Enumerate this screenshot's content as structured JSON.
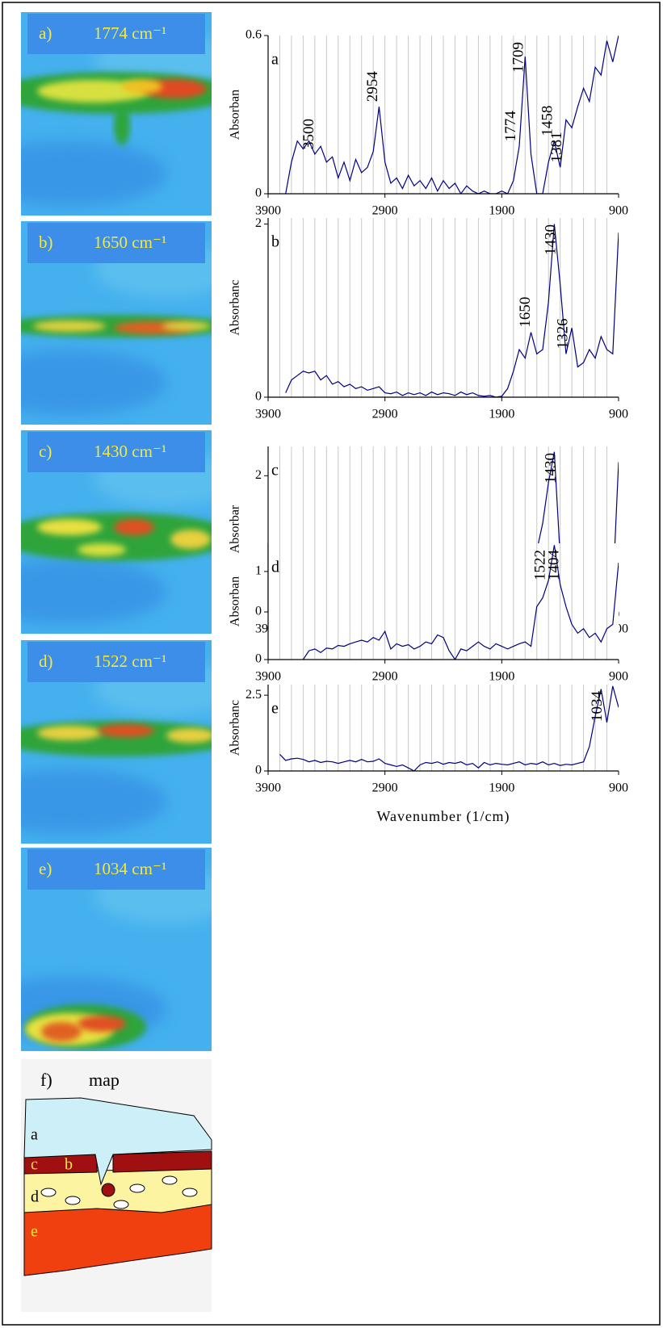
{
  "images": [
    {
      "label": "a)",
      "band": "1774 cm⁻¹"
    },
    {
      "label": "b)",
      "band": "1650 cm⁻¹"
    },
    {
      "label": "c)",
      "band": "1430 cm⁻¹"
    },
    {
      "label": "d)",
      "band": "1522 cm⁻¹"
    },
    {
      "label": "e)",
      "band": "1034 cm⁻¹"
    }
  ],
  "map": {
    "label": "f)",
    "title": "map",
    "regions": [
      "a",
      "b",
      "c",
      "d",
      "e"
    ]
  },
  "chart_data": [
    {
      "type": "line",
      "panel": "a",
      "y_label": "Absorban",
      "x": [
        3800,
        3750,
        3700,
        3650,
        3600,
        3550,
        3500,
        3450,
        3400,
        3350,
        3300,
        3250,
        3200,
        3150,
        3100,
        3050,
        3000,
        2950,
        2900,
        2850,
        2800,
        2750,
        2700,
        2650,
        2600,
        2550,
        2500,
        2450,
        2400,
        2350,
        2300,
        2250,
        2200,
        2150,
        2100,
        2050,
        2000,
        1950,
        1900,
        1850,
        1800,
        1750,
        1700,
        1650,
        1600,
        1550,
        1500,
        1450,
        1400,
        1350,
        1300,
        1250,
        1200,
        1150,
        1100,
        1050,
        1000,
        950,
        900
      ],
      "xlim": [
        3900,
        900
      ],
      "xticks": [
        3900,
        2900,
        1900,
        900
      ],
      "xgrid": [
        3800,
        3700,
        3600,
        3500,
        3400,
        3300,
        3200,
        3100,
        3000,
        2900,
        2800,
        2700,
        2600,
        2500,
        2400,
        2300,
        2200,
        2100,
        2000,
        1900,
        1800,
        1700,
        1600,
        1500,
        1400,
        1300,
        1200,
        1100,
        1000
      ],
      "ylim": [
        0,
        0.6
      ],
      "yticks": [
        0,
        0.6
      ],
      "peak_labels": [
        3500,
        2954,
        1774,
        1709,
        1458,
        1381
      ],
      "series": [
        {
          "color": "#000080",
          "values": [
            null,
            0,
            0.12,
            0.2,
            0.17,
            0.2,
            0.15,
            0.18,
            0.12,
            0.14,
            0.06,
            0.12,
            0.05,
            0.13,
            0.08,
            0.1,
            0.16,
            0.33,
            0.12,
            0.04,
            0.06,
            0.02,
            0.07,
            0.03,
            0.05,
            0.02,
            0.06,
            0.01,
            0.05,
            0.02,
            0.04,
            0,
            0.03,
            0.01,
            0,
            0.01,
            0,
            0,
            0.01,
            0,
            0.05,
            0.18,
            0.52,
            0.15,
            0,
            0,
            0.12,
            0.2,
            0.1,
            0.28,
            0.25,
            0.33,
            0.4,
            0.35,
            0.48,
            0.45,
            0.58,
            0.5,
            0.6
          ]
        }
      ]
    },
    {
      "type": "line",
      "panel": "b",
      "y_label": "Absorbanc",
      "x": [
        3800,
        3750,
        3700,
        3650,
        3600,
        3550,
        3500,
        3450,
        3400,
        3350,
        3300,
        3250,
        3200,
        3150,
        3100,
        3050,
        3000,
        2950,
        2900,
        2850,
        2800,
        2750,
        2700,
        2650,
        2600,
        2550,
        2500,
        2450,
        2400,
        2350,
        2300,
        2250,
        2200,
        2150,
        2100,
        2050,
        2000,
        1950,
        1900,
        1850,
        1800,
        1750,
        1700,
        1650,
        1600,
        1550,
        1500,
        1450,
        1400,
        1350,
        1300,
        1250,
        1200,
        1150,
        1100,
        1050,
        1000,
        950,
        900
      ],
      "xlim": [
        3900,
        900
      ],
      "xticks": [
        3900,
        2900,
        1900,
        900
      ],
      "xgrid": [
        3800,
        3700,
        3600,
        3500,
        3400,
        3300,
        3200,
        3100,
        3000,
        2900,
        2800,
        2700,
        2600,
        2500,
        2400,
        2300,
        2200,
        2100,
        2000,
        1900,
        1800,
        1700,
        1600,
        1500,
        1400,
        1300,
        1200,
        1100,
        1000
      ],
      "ylim": [
        0,
        2.07
      ],
      "yticks": [
        0,
        2
      ],
      "peak_labels": [
        1650,
        1430,
        1326
      ],
      "series": [
        {
          "color": "#000080",
          "values": [
            null,
            0.05,
            0.2,
            0.25,
            0.3,
            0.28,
            0.3,
            0.2,
            0.25,
            0.15,
            0.18,
            0.12,
            0.15,
            0.1,
            0.12,
            0.08,
            0.1,
            0.12,
            0.05,
            0.04,
            0.06,
            0.02,
            0.05,
            0.03,
            0.05,
            0.02,
            0.06,
            0.03,
            0.05,
            0.04,
            0.02,
            0.06,
            0.03,
            0.05,
            0.02,
            0.01,
            0.02,
            0,
            0.01,
            0.1,
            0.3,
            0.55,
            0.45,
            0.75,
            0.5,
            0.55,
            1.1,
            2.0,
            1.3,
            0.5,
            0.8,
            0.35,
            0.4,
            0.55,
            0.45,
            0.7,
            0.55,
            0.5,
            1.9
          ]
        }
      ]
    },
    {
      "type": "line",
      "panel": "c",
      "y_label": "Absorbar",
      "x": [
        3800,
        3750,
        3700,
        3650,
        3600,
        3550,
        3500,
        3450,
        3400,
        3350,
        3300,
        3250,
        3200,
        3150,
        3100,
        3050,
        3000,
        2950,
        2900,
        2850,
        2800,
        2750,
        2700,
        2650,
        2600,
        2550,
        2500,
        2450,
        2400,
        2350,
        2300,
        2250,
        2200,
        2150,
        2100,
        2050,
        2000,
        1950,
        1900,
        1850,
        1800,
        1750,
        1700,
        1650,
        1600,
        1550,
        1500,
        1450,
        1400,
        1350,
        1300,
        1250,
        1200,
        1150,
        1100,
        1050,
        1000,
        950,
        900
      ],
      "xlim": [
        3900,
        900
      ],
      "xticks": [
        3900,
        2900,
        1900,
        900
      ],
      "xgrid": [
        3800,
        3700,
        3600,
        3500,
        3400,
        3300,
        3200,
        3100,
        3000,
        2900,
        2800,
        2700,
        2600,
        2500,
        2400,
        2300,
        2200,
        2100,
        2000,
        1900,
        1800,
        1700,
        1600,
        1500,
        1400,
        1300,
        1200,
        1100,
        1000
      ],
      "ylim": [
        0,
        2.43
      ],
      "yticks": [
        0,
        2
      ],
      "peak_labels": [
        1430
      ],
      "series": [
        {
          "color": "#000080",
          "values": [
            0,
            0,
            0.02,
            0.08,
            0.1,
            0.08,
            0.1,
            0.05,
            0.02,
            0,
            0.01,
            0,
            0.02,
            0,
            0.03,
            0.05,
            0.04,
            0.08,
            0.1,
            0.02,
            0,
            0.01,
            0,
            0.02,
            0,
            0.05,
            0.03,
            0,
            0.01,
            0,
            0,
            0.02,
            0.05,
            0.01,
            0,
            0,
            0,
            0,
            0.03,
            0.05,
            0.2,
            0.3,
            0.45,
            0.55,
            0.9,
            1.3,
            1.9,
            2.35,
            0.8,
            0.3,
            0.1,
            0.15,
            0.3,
            0.45,
            0.7,
            0.6,
            0.7,
            0.3,
            2.2
          ]
        }
      ]
    },
    {
      "type": "line",
      "panel": "d",
      "y_label": "Absorban",
      "x": [
        3800,
        3750,
        3700,
        3650,
        3600,
        3550,
        3500,
        3450,
        3400,
        3350,
        3300,
        3250,
        3200,
        3150,
        3100,
        3050,
        3000,
        2950,
        2900,
        2850,
        2800,
        2750,
        2700,
        2650,
        2600,
        2550,
        2500,
        2450,
        2400,
        2350,
        2300,
        2250,
        2200,
        2150,
        2100,
        2050,
        2000,
        1950,
        1900,
        1850,
        1800,
        1750,
        1700,
        1650,
        1600,
        1550,
        1500,
        1450,
        1400,
        1350,
        1300,
        1250,
        1200,
        1150,
        1100,
        1050,
        1000,
        950,
        900
      ],
      "xlim": [
        3900,
        900
      ],
      "xticks": [
        3900,
        2900,
        1900,
        900
      ],
      "xgrid": [
        3800,
        3700,
        3600,
        3500,
        3400,
        3300,
        3200,
        3100,
        3000,
        2900,
        2800,
        2700,
        2600,
        2500,
        2400,
        2300,
        2200,
        2100,
        2000,
        1900,
        1800,
        1700,
        1600,
        1500,
        1400,
        1300,
        1200,
        1100,
        1000
      ],
      "ylim": [
        0,
        1.32
      ],
      "yticks": [
        0,
        1
      ],
      "peak_labels": [
        1522,
        1404
      ],
      "series": [
        {
          "color": "#000080",
          "values": [
            null,
            null,
            null,
            null,
            0,
            0.1,
            0.12,
            0.08,
            0.13,
            0.12,
            0.16,
            0.15,
            0.18,
            0.2,
            0.22,
            0.2,
            0.25,
            0.22,
            0.32,
            0.12,
            0.18,
            0.15,
            0.17,
            0.12,
            0.15,
            0.2,
            0.18,
            0.28,
            0.25,
            0.1,
            0,
            0.12,
            0.1,
            0.15,
            0.2,
            0.15,
            0.12,
            0.18,
            0.15,
            0.12,
            0.15,
            0.18,
            0.2,
            0.15,
            0.6,
            0.7,
            0.9,
            1.3,
            0.85,
            0.6,
            0.4,
            0.3,
            0.35,
            0.25,
            0.3,
            0.2,
            0.35,
            0.4,
            1.1
          ]
        }
      ]
    },
    {
      "type": "line",
      "panel": "e",
      "y_label": "Absorbanc",
      "x_label": "Wavenumber (1/cm)",
      "x": [
        3800,
        3750,
        3700,
        3650,
        3600,
        3550,
        3500,
        3450,
        3400,
        3350,
        3300,
        3250,
        3200,
        3150,
        3100,
        3050,
        3000,
        2950,
        2900,
        2850,
        2800,
        2750,
        2700,
        2650,
        2600,
        2550,
        2500,
        2450,
        2400,
        2350,
        2300,
        2250,
        2200,
        2150,
        2100,
        2050,
        2000,
        1950,
        1900,
        1850,
        1800,
        1750,
        1700,
        1650,
        1600,
        1550,
        1500,
        1450,
        1400,
        1350,
        1300,
        1250,
        1200,
        1150,
        1100,
        1050,
        1000,
        950,
        900
      ],
      "xlim": [
        3900,
        900
      ],
      "xticks": [
        3900,
        2900,
        1900,
        900
      ],
      "xgrid": [
        3800,
        3700,
        3600,
        3500,
        3400,
        3300,
        3200,
        3100,
        3000,
        2900,
        2800,
        2700,
        2600,
        2500,
        2400,
        2300,
        2200,
        2100,
        2000,
        1900,
        1800,
        1700,
        1600,
        1500,
        1400,
        1300,
        1200,
        1100,
        1000
      ],
      "ylim": [
        0,
        2.85
      ],
      "yticks": [
        0,
        2.5
      ],
      "peak_labels": [
        1034
      ],
      "series": [
        {
          "color": "#000080",
          "values": [
            0.55,
            0.35,
            0.4,
            0.42,
            0.38,
            0.3,
            0.35,
            0.28,
            0.32,
            0.3,
            0.25,
            0.3,
            0.35,
            0.3,
            0.38,
            0.3,
            0.32,
            0.4,
            0.25,
            0.2,
            0.15,
            0.2,
            0.1,
            0,
            0.2,
            0.28,
            0.25,
            0.3,
            0.22,
            0.28,
            0.25,
            0.3,
            0.2,
            0.25,
            0.1,
            0.28,
            0.2,
            0.25,
            0.22,
            0.2,
            0.25,
            0.3,
            0.2,
            0.25,
            0.22,
            0.3,
            0.2,
            0.25,
            0.18,
            0.22,
            0.2,
            0.25,
            0.3,
            0.8,
            1.8,
            2.7,
            1.6,
            2.8,
            2.1
          ]
        }
      ]
    }
  ]
}
